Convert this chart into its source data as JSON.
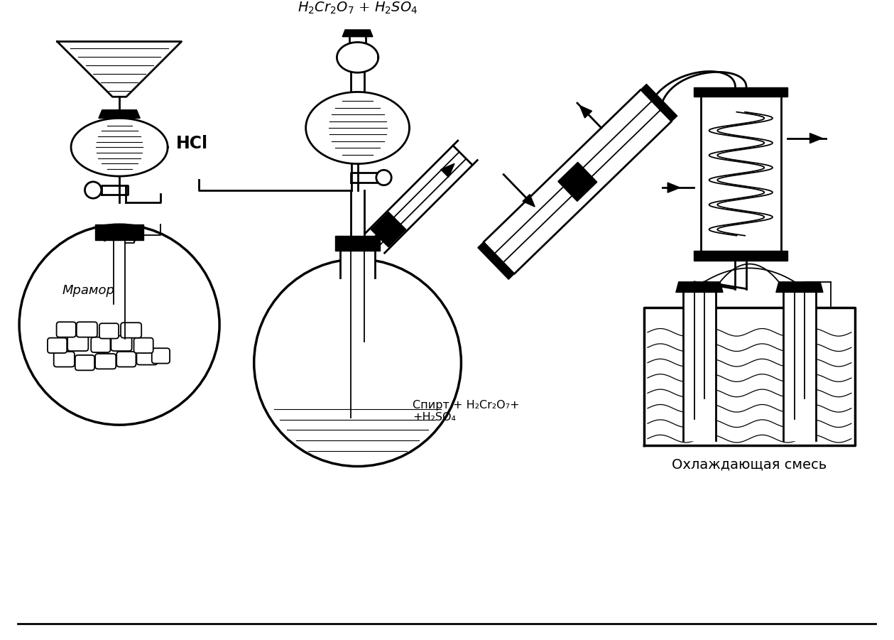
{
  "bg_color": "#ffffff",
  "line_color": "#000000",
  "labels": {
    "hcl": "HCl",
    "marble": "Мрамор",
    "reagent_top": "H₂Cr₂O₇ + H₂SO₄",
    "reagent_flask": "Спирт + H₂Cr₂O₇+\n+H₂SO₄",
    "cooling": "Охлаждающая смесь"
  },
  "figsize": [
    12.59,
    9.01
  ],
  "dpi": 100,
  "xlim": [
    0,
    12.59
  ],
  "ylim": [
    0,
    9.01
  ]
}
